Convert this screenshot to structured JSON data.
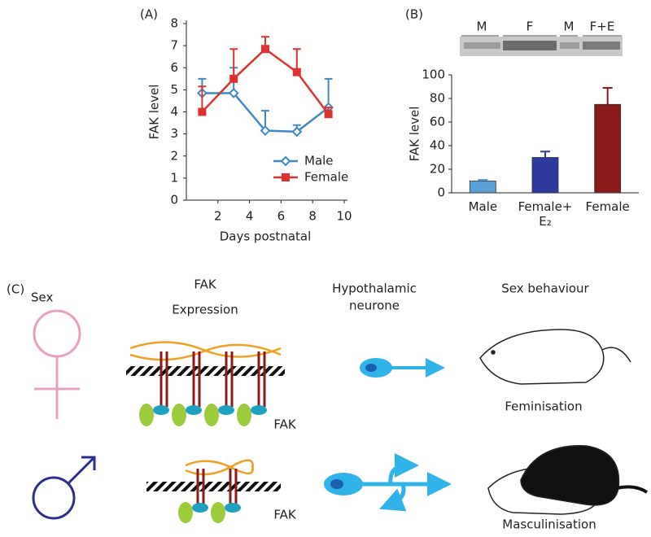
{
  "chart_data": [
    {
      "type": "line",
      "panel_label": "(A)",
      "x_label": "Days postnatal",
      "y_label": "FAK level",
      "x": [
        1,
        3,
        5,
        7,
        9
      ],
      "series": [
        {
          "name": "Male",
          "color": "#3f88c5",
          "marker": "diamond",
          "values": [
            4.85,
            4.85,
            3.15,
            3.1,
            4.2
          ],
          "errors": [
            0.65,
            1.15,
            0.9,
            0.3,
            1.3
          ]
        },
        {
          "name": "Female",
          "color": "#e03030",
          "marker": "square",
          "values": [
            4.0,
            5.5,
            6.85,
            5.8,
            3.9
          ],
          "errors": [
            1.15,
            1.35,
            0.55,
            1.05,
            0.3
          ]
        }
      ],
      "xlim": [
        0,
        10
      ],
      "xticks": [
        2,
        4,
        6,
        8,
        10
      ],
      "ylim": [
        0,
        8
      ],
      "yticks": [
        0,
        1,
        2,
        3,
        4,
        5,
        6,
        7,
        8
      ],
      "legend": "lower right"
    },
    {
      "type": "bar",
      "panel_label": "(B)",
      "y_label": "FAK level",
      "blot_labels": [
        "M",
        "F",
        "M",
        "F+E"
      ],
      "categories": [
        "Male",
        "Female+ E₂",
        "Female"
      ],
      "values": [
        10,
        30,
        75
      ],
      "errors": [
        1,
        5,
        14
      ],
      "colors": [
        "#5aa0d8",
        "#2e3a9e",
        "#8b1a1a"
      ],
      "ylim": [
        0,
        100
      ],
      "yticks": [
        0,
        20,
        40,
        60,
        80,
        100
      ]
    }
  ],
  "diagram": {
    "panel_label": "(C)",
    "sex": "Sex",
    "fak_title": "FAK",
    "fak_subtitle": "Expression",
    "neurone_line1": "Hypothalamic",
    "neurone_line2": "neurone",
    "behaviour": "Sex behaviour",
    "rows": [
      {
        "fak_label": "FAK",
        "outcome": "Feminisation"
      },
      {
        "fak_label": "FAK",
        "outcome": "Masculinisation"
      }
    ]
  }
}
